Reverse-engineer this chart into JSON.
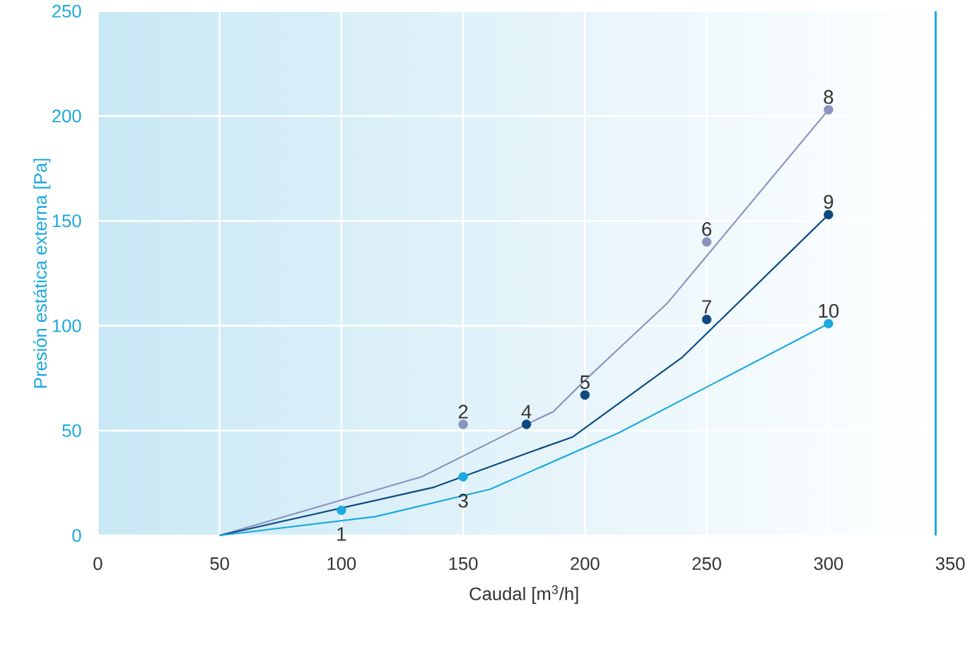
{
  "chart_data": {
    "type": "line",
    "xlabel": "Caudal [m$^{3}$/h]",
    "ylabel": "Presión estática externa [Pa]",
    "xlim": [
      0,
      350
    ],
    "ylim": [
      0,
      250
    ],
    "xticks": [
      0,
      50,
      100,
      150,
      200,
      250,
      300,
      350
    ],
    "yticks": [
      0,
      50,
      100,
      150,
      200,
      250
    ],
    "grid": true,
    "marker": "none",
    "line_style": "solid",
    "series": [
      {
        "color": "#8a93c0",
        "x": [
          50,
          133,
          176,
          187,
          200,
          234,
          300
        ],
        "values": [
          0,
          28,
          53,
          59,
          74,
          111,
          203
        ]
      },
      {
        "color": "#0d4a80",
        "x": [
          50,
          138,
          178,
          195,
          240,
          300
        ],
        "values": [
          0,
          23,
          40,
          47,
          85,
          153
        ]
      },
      {
        "color": "#1ba9e0",
        "x": [
          50,
          114,
          161,
          214,
          300
        ],
        "values": [
          0,
          9,
          22,
          49,
          101
        ]
      },
      {
        "type": "scatter",
        "marker": "circle",
        "color": "#1ba9e0",
        "x": [
          100,
          150,
          300
        ],
        "values": [
          12,
          28,
          101
        ]
      },
      {
        "type": "scatter",
        "marker": "circle",
        "color": "#8a93c0",
        "x": [
          150,
          250,
          300
        ],
        "values": [
          53,
          140,
          203
        ]
      },
      {
        "type": "scatter",
        "marker": "circle",
        "color": "#0d4a80",
        "x": [
          176,
          200,
          250,
          300
        ],
        "values": [
          53,
          67,
          103,
          153
        ]
      }
    ],
    "ref_lines": [
      {
        "axis": "x",
        "value": 344,
        "color": "#1ba9e0"
      }
    ],
    "annotations": [
      {
        "text": "1",
        "x": 100,
        "y": 12
      },
      {
        "text": "2",
        "x": 150,
        "y": 53
      },
      {
        "text": "3",
        "x": 150,
        "y": 28
      },
      {
        "text": "4",
        "x": 176,
        "y": 53
      },
      {
        "text": "5",
        "x": 200,
        "y": 67
      },
      {
        "text": "6",
        "x": 250,
        "y": 140
      },
      {
        "text": "7",
        "x": 250,
        "y": 103
      },
      {
        "text": "8",
        "x": 300,
        "y": 203
      },
      {
        "text": "9",
        "x": 300,
        "y": 153
      },
      {
        "text": "10",
        "x": 300,
        "y": 101
      }
    ]
  }
}
